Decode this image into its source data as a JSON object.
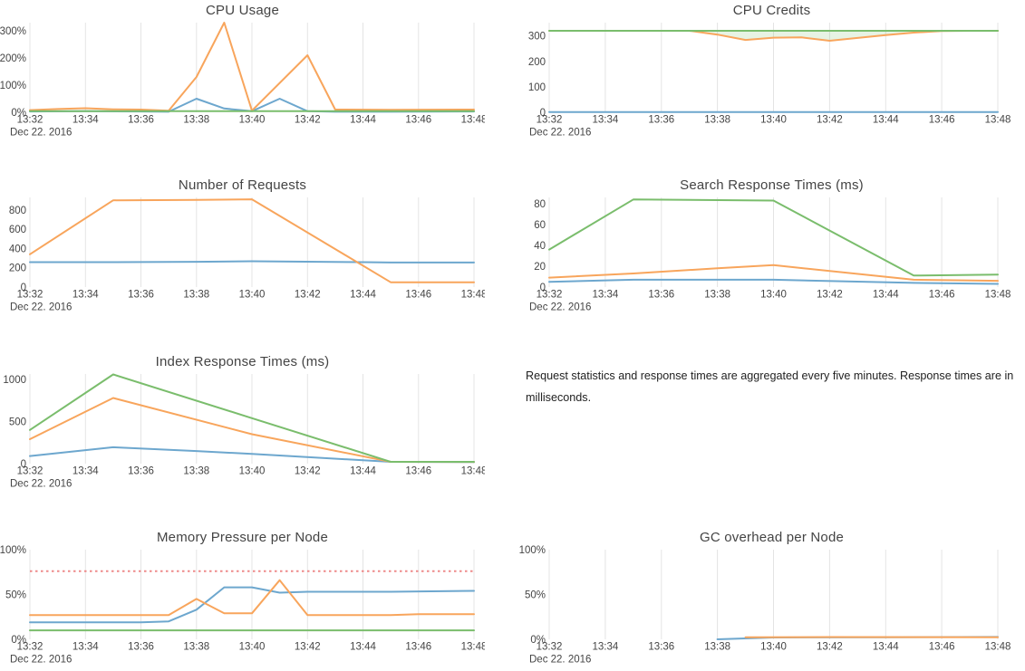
{
  "note": {
    "text": "Request statistics and response times are aggregated every five minutes. Response times are in milliseconds."
  },
  "palette": {
    "blue": "#6da7ce",
    "orange": "#f8a55c",
    "green": "#7abd6c",
    "red": "#ee8a8a",
    "grid": "#e4e4e4",
    "text": "#444444"
  },
  "chart_data": [
    {
      "type": "line",
      "title": "CPU Usage",
      "x_ticks": [
        "13:32",
        "13:34",
        "13:36",
        "13:38",
        "13:40",
        "13:42",
        "13:44",
        "13:46",
        "13:48"
      ],
      "x_sub_label": "Dec 22. 2016",
      "x_range": [
        0,
        16
      ],
      "y_range": [
        0,
        330
      ],
      "y_ticks": [
        {
          "v": 0,
          "label": "0%"
        },
        {
          "v": 100,
          "label": "100%"
        },
        {
          "v": 200,
          "label": "200%"
        },
        {
          "v": 300,
          "label": "300%"
        }
      ],
      "grid": "vertical",
      "legend": "none",
      "series": [
        {
          "name": "series-blue",
          "color": "blue",
          "points": [
            [
              0,
              3
            ],
            [
              2,
              4
            ],
            [
              4,
              3
            ],
            [
              5,
              2
            ],
            [
              6,
              50
            ],
            [
              7,
              14
            ],
            [
              8,
              4
            ],
            [
              9,
              50
            ],
            [
              10,
              4
            ],
            [
              11,
              2
            ],
            [
              13,
              2
            ],
            [
              16,
              3
            ]
          ]
        },
        {
          "name": "series-orange",
          "color": "orange",
          "points": [
            [
              0,
              8
            ],
            [
              1,
              12
            ],
            [
              2,
              15
            ],
            [
              3,
              11
            ],
            [
              4,
              10
            ],
            [
              5,
              6
            ],
            [
              6,
              130
            ],
            [
              7,
              330
            ],
            [
              8,
              6
            ],
            [
              10,
              210
            ],
            [
              11,
              10
            ],
            [
              13,
              9
            ],
            [
              16,
              10
            ]
          ]
        },
        {
          "name": "series-green",
          "color": "green",
          "points": [
            [
              0,
              4
            ],
            [
              8,
              4
            ],
            [
              16,
              4
            ]
          ]
        }
      ]
    },
    {
      "type": "line",
      "title": "CPU Credits",
      "x_ticks": [
        "13:32",
        "13:34",
        "13:36",
        "13:38",
        "13:40",
        "13:42",
        "13:44",
        "13:46",
        "13:48"
      ],
      "x_sub_label": "Dec 22. 2016",
      "x_range": [
        0,
        16
      ],
      "y_range": [
        0,
        352
      ],
      "y_ticks": [
        {
          "v": 0,
          "label": "0"
        },
        {
          "v": 100,
          "label": "100"
        },
        {
          "v": 200,
          "label": "200"
        },
        {
          "v": 300,
          "label": "300"
        }
      ],
      "grid": "vertical",
      "legend": "none",
      "series": [
        {
          "name": "series-blue",
          "color": "blue",
          "points": [
            [
              0,
              1
            ],
            [
              8,
              1
            ],
            [
              16,
              1
            ]
          ]
        },
        {
          "name": "series-orange",
          "color": "orange",
          "points": [
            [
              0,
              320
            ],
            [
              5,
              320
            ],
            [
              6,
              305
            ],
            [
              7,
              284
            ],
            [
              8,
              293
            ],
            [
              9,
              294
            ],
            [
              10,
              281
            ],
            [
              11,
              292
            ],
            [
              12,
              303
            ],
            [
              13,
              313
            ],
            [
              14,
              319
            ],
            [
              15,
              320
            ],
            [
              16,
              320
            ]
          ]
        },
        {
          "name": "series-green",
          "color": "green",
          "points": [
            [
              0,
              320
            ],
            [
              8,
              320
            ],
            [
              16,
              320
            ]
          ],
          "fill_to_prev": true
        }
      ]
    },
    {
      "type": "line",
      "title": "Number of Requests",
      "x_ticks": [
        "13:32",
        "13:34",
        "13:36",
        "13:38",
        "13:40",
        "13:42",
        "13:44",
        "13:46",
        "13:48"
      ],
      "x_sub_label": "Dec 22. 2016",
      "x_range": [
        0,
        16
      ],
      "y_range": [
        0,
        930
      ],
      "y_ticks": [
        {
          "v": 0,
          "label": "0"
        },
        {
          "v": 200,
          "label": "200"
        },
        {
          "v": 400,
          "label": "400"
        },
        {
          "v": 600,
          "label": "600"
        },
        {
          "v": 800,
          "label": "800"
        }
      ],
      "grid": "vertical",
      "legend": "none",
      "series": [
        {
          "name": "series-blue",
          "color": "blue",
          "points": [
            [
              0,
              258
            ],
            [
              3,
              258
            ],
            [
              6,
              262
            ],
            [
              8,
              268
            ],
            [
              12,
              258
            ],
            [
              13,
              255
            ],
            [
              16,
              255
            ]
          ]
        },
        {
          "name": "series-orange",
          "color": "orange",
          "points": [
            [
              0,
              340
            ],
            [
              3,
              900
            ],
            [
              6,
              905
            ],
            [
              8,
              910
            ],
            [
              13,
              50
            ],
            [
              16,
              50
            ]
          ]
        }
      ]
    },
    {
      "type": "line",
      "title": "Search Response Times (ms)",
      "x_ticks": [
        "13:32",
        "13:34",
        "13:36",
        "13:38",
        "13:40",
        "13:42",
        "13:44",
        "13:46",
        "13:48"
      ],
      "x_sub_label": "Dec 22. 2016",
      "x_range": [
        0,
        16
      ],
      "y_range": [
        0,
        86
      ],
      "y_ticks": [
        {
          "v": 0,
          "label": "0"
        },
        {
          "v": 20,
          "label": "20"
        },
        {
          "v": 40,
          "label": "40"
        },
        {
          "v": 60,
          "label": "60"
        },
        {
          "v": 80,
          "label": "80"
        }
      ],
      "grid": "vertical",
      "legend": "none",
      "series": [
        {
          "name": "series-blue",
          "color": "blue",
          "points": [
            [
              0,
              5
            ],
            [
              3,
              7
            ],
            [
              8,
              7
            ],
            [
              13,
              4
            ],
            [
              16,
              3
            ]
          ]
        },
        {
          "name": "series-orange",
          "color": "orange",
          "points": [
            [
              0,
              9
            ],
            [
              3,
              13
            ],
            [
              6,
              18
            ],
            [
              8,
              21
            ],
            [
              13,
              7
            ],
            [
              16,
              6
            ]
          ]
        },
        {
          "name": "series-green",
          "color": "green",
          "points": [
            [
              0,
              36
            ],
            [
              3,
              84
            ],
            [
              8,
              83
            ],
            [
              13,
              11
            ],
            [
              16,
              12
            ]
          ]
        }
      ]
    },
    {
      "type": "line",
      "title": "Index Response Times (ms)",
      "x_ticks": [
        "13:32",
        "13:34",
        "13:36",
        "13:38",
        "13:40",
        "13:42",
        "13:44",
        "13:46",
        "13:48"
      ],
      "x_sub_label": "Dec 22. 2016",
      "x_range": [
        0,
        16
      ],
      "y_range": [
        0,
        1065
      ],
      "y_ticks": [
        {
          "v": 0,
          "label": "0"
        },
        {
          "v": 500,
          "label": "500"
        },
        {
          "v": 1000,
          "label": "1000"
        }
      ],
      "grid": "vertical",
      "legend": "none",
      "series": [
        {
          "name": "series-blue",
          "color": "blue",
          "points": [
            [
              0,
              90
            ],
            [
              3,
              195
            ],
            [
              6,
              150
            ],
            [
              8,
              115
            ],
            [
              12,
              40
            ],
            [
              13,
              22
            ],
            [
              16,
              18
            ]
          ]
        },
        {
          "name": "series-orange",
          "color": "orange",
          "points": [
            [
              0,
              290
            ],
            [
              3,
              780
            ],
            [
              8,
              350
            ],
            [
              13,
              22
            ],
            [
              16,
              20
            ]
          ]
        },
        {
          "name": "series-green",
          "color": "green",
          "points": [
            [
              0,
              400
            ],
            [
              3,
              1060
            ],
            [
              8,
              540
            ],
            [
              13,
              22
            ],
            [
              16,
              22
            ]
          ]
        }
      ]
    },
    {
      "type": "line",
      "title": "Memory Pressure per Node",
      "x_ticks": [
        "13:32",
        "13:34",
        "13:36",
        "13:38",
        "13:40",
        "13:42",
        "13:44",
        "13:46",
        "13:48"
      ],
      "x_sub_label": "Dec 22. 2016",
      "x_range": [
        0,
        16
      ],
      "y_range": [
        0,
        100
      ],
      "y_ticks": [
        {
          "v": 0,
          "label": "0%"
        },
        {
          "v": 50,
          "label": "50%"
        },
        {
          "v": 100,
          "label": "100%"
        }
      ],
      "grid": "vertical",
      "legend": "none",
      "threshold": {
        "value": 76,
        "color": "red",
        "style": "dotted"
      },
      "series": [
        {
          "name": "series-blue",
          "color": "blue",
          "points": [
            [
              0,
              19
            ],
            [
              4,
              19
            ],
            [
              5,
              20
            ],
            [
              6,
              33
            ],
            [
              7,
              58
            ],
            [
              8,
              58
            ],
            [
              9,
              52
            ],
            [
              10,
              53
            ],
            [
              13,
              53
            ],
            [
              16,
              54
            ]
          ]
        },
        {
          "name": "series-orange",
          "color": "orange",
          "points": [
            [
              0,
              27
            ],
            [
              5,
              27
            ],
            [
              6,
              45
            ],
            [
              7,
              29
            ],
            [
              8,
              29
            ],
            [
              9,
              66
            ],
            [
              10,
              27
            ],
            [
              13,
              27
            ],
            [
              14,
              28
            ],
            [
              16,
              28
            ]
          ]
        },
        {
          "name": "series-green",
          "color": "green",
          "points": [
            [
              0,
              10
            ],
            [
              8,
              10
            ],
            [
              16,
              10
            ]
          ]
        }
      ]
    },
    {
      "type": "line",
      "title": "GC overhead per Node",
      "x_ticks": [
        "13:32",
        "13:34",
        "13:36",
        "13:38",
        "13:40",
        "13:42",
        "13:44",
        "13:46",
        "13:48"
      ],
      "x_sub_label": "Dec 22. 2016",
      "x_range": [
        0,
        16
      ],
      "y_range": [
        0,
        100
      ],
      "y_ticks": [
        {
          "v": 0,
          "label": "0%"
        },
        {
          "v": 50,
          "label": "50%"
        },
        {
          "v": 100,
          "label": "100%"
        }
      ],
      "grid": "vertical",
      "legend": "none",
      "series": [
        {
          "name": "series-blue",
          "color": "blue",
          "points": [
            [
              6,
              0
            ],
            [
              8,
              2
            ],
            [
              12,
              2.3
            ],
            [
              16,
              2.6
            ]
          ]
        },
        {
          "name": "series-orange",
          "color": "orange",
          "points": [
            [
              7,
              2.2
            ],
            [
              10,
              2.5
            ],
            [
              16,
              2.2
            ]
          ]
        }
      ]
    }
  ]
}
